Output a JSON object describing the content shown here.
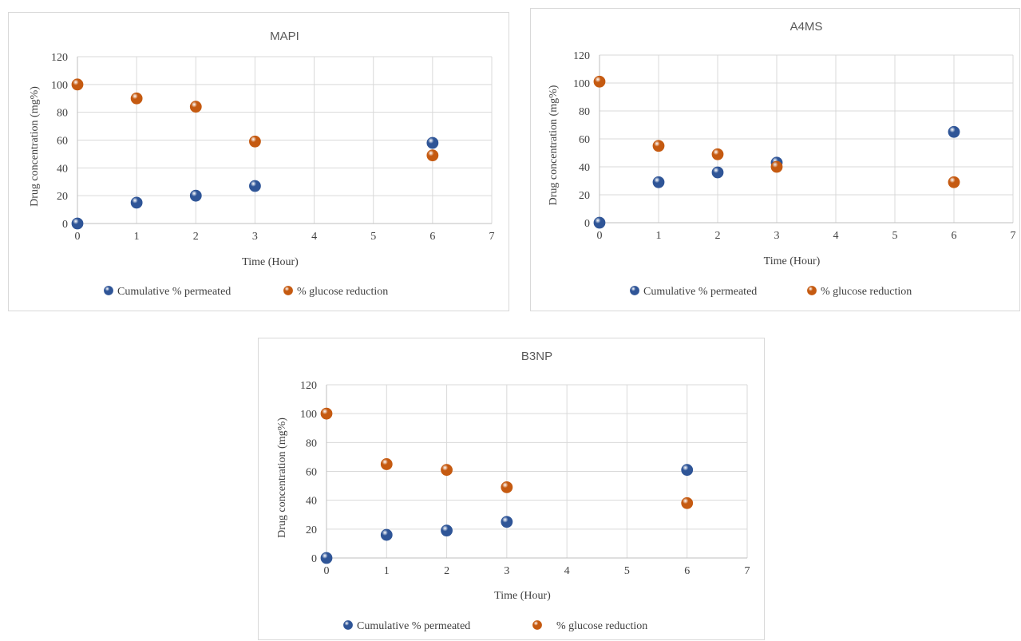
{
  "chart_data": [
    {
      "id": "mapi",
      "type": "scatter",
      "title": "MAPI",
      "xlabel": "Time (Hour)",
      "ylabel": "Drug concentration (mg%)",
      "xlim": [
        0,
        7
      ],
      "ylim": [
        0,
        120
      ],
      "xticks": [
        0,
        1,
        2,
        3,
        4,
        5,
        6,
        7
      ],
      "yticks": [
        0,
        20,
        40,
        60,
        80,
        100,
        120
      ],
      "grid": true,
      "legend_position": "bottom",
      "series": [
        {
          "name": "Cumulative % permeated",
          "color": "#2f5597",
          "x": [
            0,
            1,
            2,
            3,
            6
          ],
          "y": [
            0,
            15,
            20,
            27,
            58
          ]
        },
        {
          "name": "% glucose reduction",
          "color": "#c55a11",
          "x": [
            0,
            1,
            2,
            3,
            6
          ],
          "y": [
            100,
            90,
            84,
            59,
            49
          ]
        }
      ]
    },
    {
      "id": "a4ms",
      "type": "scatter",
      "title": "A4MS",
      "xlabel": "Time (Hour)",
      "ylabel": "Drug concentration (mg%)",
      "xlim": [
        0,
        7
      ],
      "ylim": [
        0,
        120
      ],
      "xticks": [
        0,
        1,
        2,
        3,
        4,
        5,
        6,
        7
      ],
      "yticks": [
        0,
        20,
        40,
        60,
        80,
        100,
        120
      ],
      "grid": true,
      "legend_position": "bottom",
      "series": [
        {
          "name": "Cumulative % permeated",
          "color": "#2f5597",
          "x": [
            0,
            1,
            2,
            3,
            6
          ],
          "y": [
            0,
            29,
            36,
            43,
            65
          ]
        },
        {
          "name": "% glucose reduction",
          "color": "#c55a11",
          "x": [
            0,
            1,
            2,
            3,
            6
          ],
          "y": [
            101,
            55,
            49,
            40,
            29
          ]
        }
      ]
    },
    {
      "id": "b3np",
      "type": "scatter",
      "title": "B3NP",
      "xlabel": "Time (Hour)",
      "ylabel": "Drug concentration (mg%)",
      "xlim": [
        0,
        7
      ],
      "ylim": [
        0,
        120
      ],
      "xticks": [
        0,
        1,
        2,
        3,
        4,
        5,
        6,
        7
      ],
      "yticks": [
        0,
        20,
        40,
        60,
        80,
        100,
        120
      ],
      "grid": true,
      "legend_position": "bottom",
      "series": [
        {
          "name": "Cumulative % permeated",
          "color": "#2f5597",
          "x": [
            0,
            1,
            2,
            3,
            6
          ],
          "y": [
            0,
            16,
            19,
            25,
            61
          ]
        },
        {
          "name": "% glucose reduction",
          "color": "#c55a11",
          "x": [
            0,
            1,
            2,
            3,
            6
          ],
          "y": [
            100,
            65,
            61,
            49,
            38
          ]
        }
      ]
    }
  ]
}
